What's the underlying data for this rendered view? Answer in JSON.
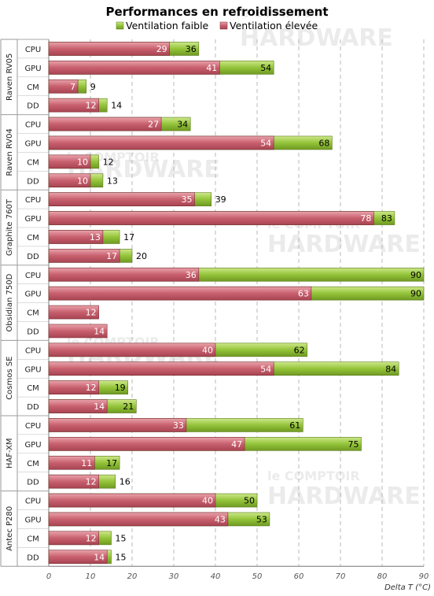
{
  "colors": {
    "faible": "#94c43a",
    "elevee": "#c8606e",
    "grid": "#b8b8b8"
  },
  "chart_data": {
    "type": "bar",
    "orientation": "horizontal",
    "title": "Performances en refroidissement",
    "xlabel": "Delta T (°C)",
    "ylabel": "",
    "xlim": [
      0,
      90
    ],
    "xticks": [
      0,
      10,
      20,
      30,
      40,
      50,
      60,
      70,
      80,
      90
    ],
    "grid": "vertical dashed",
    "legend": "top",
    "series": [
      {
        "name": "Ventilation faible",
        "color": "#94c43a"
      },
      {
        "name": "Ventilation élevée",
        "color": "#c8606e"
      }
    ],
    "groups": [
      {
        "name": "Raven RV05",
        "categories": [
          "CPU",
          "GPU",
          "CM",
          "DD"
        ],
        "faible": [
          36,
          54,
          9,
          14
        ],
        "elevee": [
          29,
          41,
          7,
          12
        ]
      },
      {
        "name": "Raven RV04",
        "categories": [
          "CPU",
          "GPU",
          "CM",
          "DD"
        ],
        "faible": [
          34,
          68,
          12,
          13
        ],
        "elevee": [
          27,
          54,
          10,
          10
        ]
      },
      {
        "name": "Graphite 760T",
        "categories": [
          "CPU",
          "GPU",
          "CM",
          "DD"
        ],
        "faible": [
          39,
          83,
          17,
          20
        ],
        "elevee": [
          35,
          78,
          13,
          17
        ]
      },
      {
        "name": "Obsidian 750D",
        "categories": [
          "CPU",
          "GPU",
          "CM",
          "DD"
        ],
        "faible": [
          90,
          90,
          null,
          null
        ],
        "elevee": [
          36,
          63,
          12,
          14
        ]
      },
      {
        "name": "Cosmos SE",
        "categories": [
          "CPU",
          "GPU",
          "CM",
          "DD"
        ],
        "faible": [
          62,
          84,
          19,
          21
        ],
        "elevee": [
          40,
          54,
          12,
          14
        ]
      },
      {
        "name": "HAF-XM",
        "categories": [
          "CPU",
          "GPU",
          "CM",
          "DD"
        ],
        "faible": [
          61,
          75,
          17,
          16
        ],
        "elevee": [
          33,
          47,
          11,
          12
        ]
      },
      {
        "name": "Antec P280",
        "categories": [
          "CPU",
          "GPU",
          "CM",
          "DD"
        ],
        "faible": [
          50,
          53,
          15,
          15
        ],
        "elevee": [
          40,
          43,
          12,
          14
        ]
      }
    ]
  }
}
